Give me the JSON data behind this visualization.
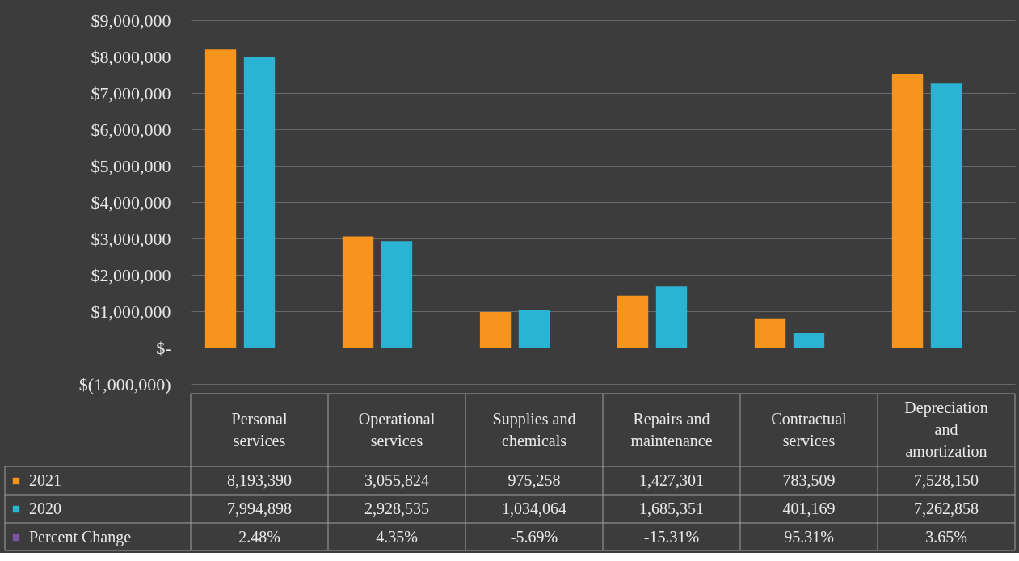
{
  "chart_data": {
    "type": "bar",
    "categories": [
      "Personal services",
      "Operational services",
      "Supplies and chemicals",
      "Repairs and maintenance",
      "Contractual services",
      "Depreciation and amortization"
    ],
    "series": [
      {
        "name": "2021",
        "color": "#f7941d",
        "values": [
          8193390,
          3055824,
          975258,
          1427301,
          783509,
          7528150
        ],
        "value_labels": [
          "8,193,390",
          "3,055,824",
          "975,258",
          "1,427,301",
          "783,509",
          "7,528,150"
        ]
      },
      {
        "name": "2020",
        "color": "#2bb3d4",
        "values": [
          7994898,
          2928535,
          1034064,
          1685351,
          401169,
          7262858
        ],
        "value_labels": [
          "7,994,898",
          "2,928,535",
          "1,034,064",
          "1,685,351",
          "401,169",
          "7,262,858"
        ]
      },
      {
        "name": "Percent Change",
        "color": "#7d55a8",
        "values": [
          2.48,
          4.35,
          -5.69,
          -15.31,
          95.31,
          3.65
        ],
        "value_labels": [
          "2.48%",
          "4.35%",
          "-5.69%",
          "-15.31%",
          "95.31%",
          "3.65%"
        ]
      }
    ],
    "ylim": [
      -1000000,
      9000000
    ],
    "yticks": [
      {
        "value": -1000000,
        "label": "$(1,000,000)"
      },
      {
        "value": 0,
        "label": "$-"
      },
      {
        "value": 1000000,
        "label": "$1,000,000"
      },
      {
        "value": 2000000,
        "label": "$2,000,000"
      },
      {
        "value": 3000000,
        "label": "$3,000,000"
      },
      {
        "value": 4000000,
        "label": "$4,000,000"
      },
      {
        "value": 5000000,
        "label": "$5,000,000"
      },
      {
        "value": 6000000,
        "label": "$6,000,000"
      },
      {
        "value": 7000000,
        "label": "$7,000,000"
      },
      {
        "value": 8000000,
        "label": "$8,000,000"
      },
      {
        "value": 9000000,
        "label": "$9,000,000"
      }
    ],
    "grid": "y",
    "legend": "bottom",
    "tick_labels": "y"
  }
}
